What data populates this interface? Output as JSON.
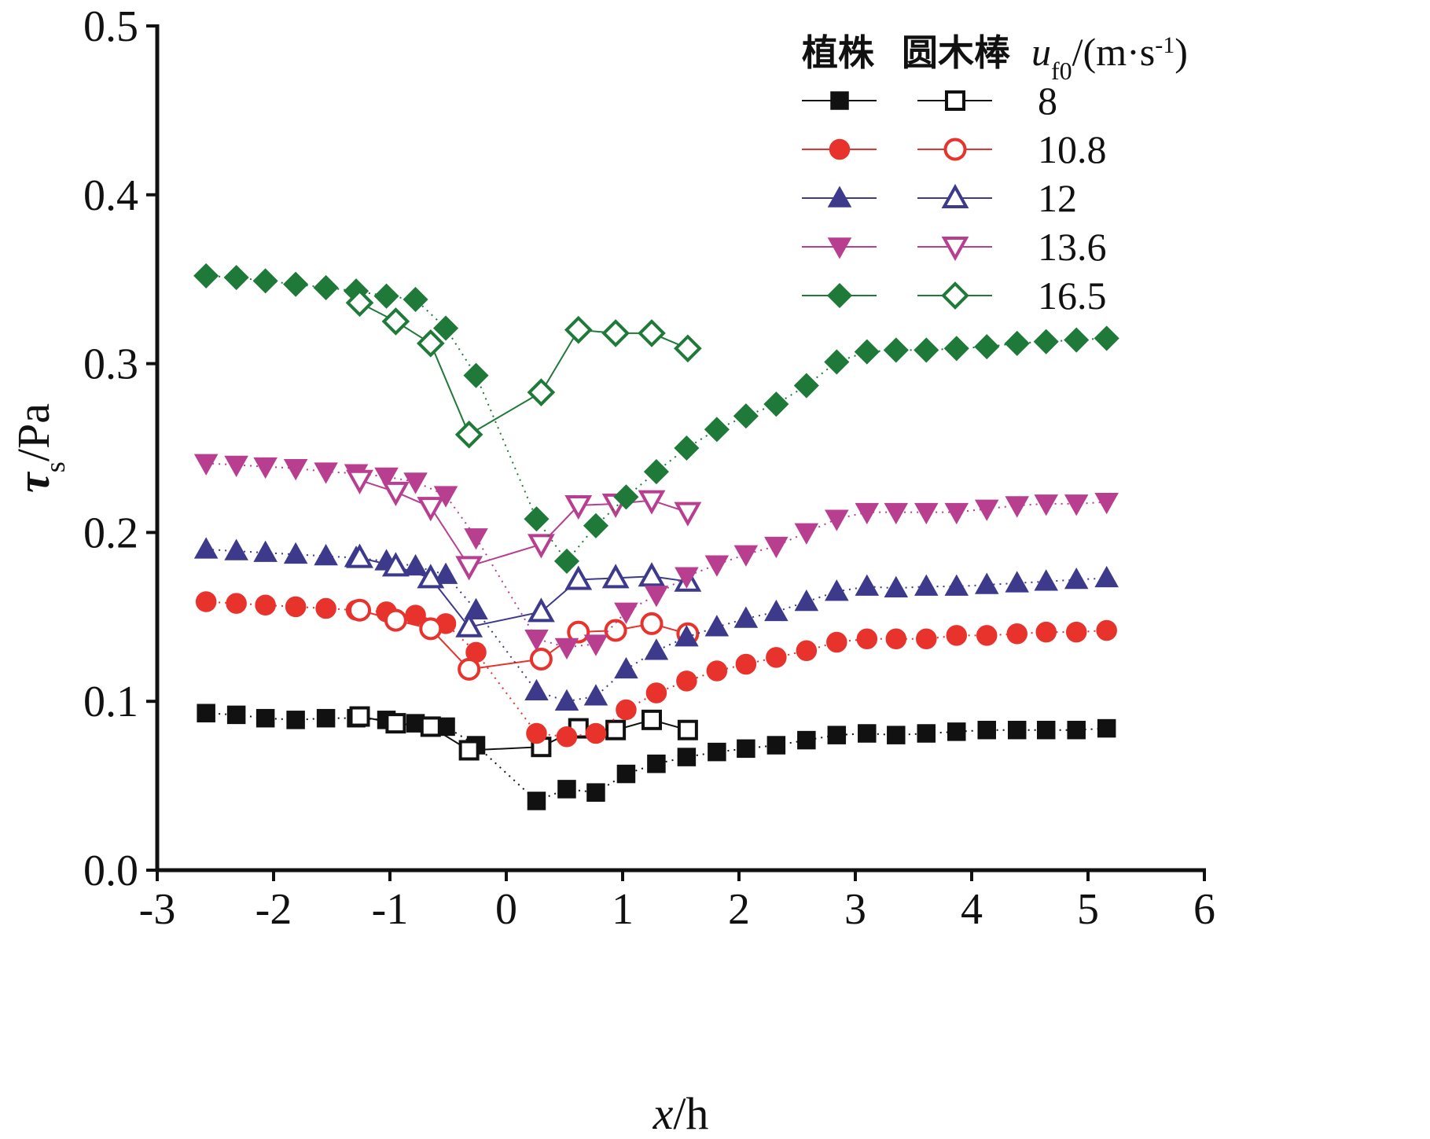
{
  "chart_data": {
    "type": "scatter",
    "xlabel": "x/h",
    "ylabel": "τs/Pa",
    "xlim": [
      -3,
      6
    ],
    "ylim": [
      0,
      0.5
    ],
    "x_ticks": [
      "-3",
      "-2",
      "-1",
      "0",
      "1",
      "2",
      "3",
      "4",
      "5",
      "6"
    ],
    "y_ticks": [
      "0.0",
      "0.1",
      "0.2",
      "0.3",
      "0.4",
      "0.5"
    ],
    "legend": {
      "placement": "top-right",
      "col1": "植株",
      "col2": "圆木棒",
      "col3": "uf0/(m·s-1)",
      "col3_var": "u",
      "col3_sub": "f0",
      "col3_mid": "/(m·s",
      "col3_sup": "-1",
      "col3_end": ")"
    },
    "series": [
      {
        "name": "8",
        "group": "植株",
        "marker": "square",
        "filled": true,
        "color": "#111111",
        "x": [
          -2.58,
          -2.32,
          -2.07,
          -1.81,
          -1.55,
          -1.29,
          -1.03,
          -0.78,
          -0.52,
          -0.26,
          0.26,
          0.52,
          0.77,
          1.03,
          1.29,
          1.55,
          1.81,
          2.06,
          2.32,
          2.58,
          2.84,
          3.1,
          3.35,
          3.61,
          3.87,
          4.13,
          4.39,
          4.64,
          4.9,
          5.16
        ],
        "y": [
          0.093,
          0.092,
          0.09,
          0.089,
          0.09,
          0.09,
          0.089,
          0.087,
          0.085,
          0.074,
          0.041,
          0.048,
          0.046,
          0.057,
          0.063,
          0.067,
          0.07,
          0.072,
          0.074,
          0.077,
          0.08,
          0.081,
          0.08,
          0.081,
          0.082,
          0.083,
          0.083,
          0.083,
          0.083,
          0.084
        ]
      },
      {
        "name": "8",
        "group": "圆木棒",
        "marker": "square",
        "filled": false,
        "color": "#111111",
        "x": [
          -1.26,
          -0.95,
          -0.65,
          -0.32,
          0.3,
          0.62,
          0.94,
          1.25,
          1.56
        ],
        "y": [
          0.091,
          0.087,
          0.085,
          0.071,
          0.073,
          0.084,
          0.083,
          0.089,
          0.083
        ]
      },
      {
        "name": "10.8",
        "group": "植株",
        "marker": "circle",
        "filled": true,
        "color": "#e8322c",
        "x": [
          -2.58,
          -2.32,
          -2.07,
          -1.81,
          -1.55,
          -1.29,
          -1.03,
          -0.78,
          -0.52,
          -0.26,
          0.26,
          0.52,
          0.77,
          1.03,
          1.29,
          1.55,
          1.81,
          2.06,
          2.32,
          2.58,
          2.84,
          3.1,
          3.35,
          3.61,
          3.87,
          4.13,
          4.39,
          4.64,
          4.9,
          5.16
        ],
        "y": [
          0.159,
          0.158,
          0.157,
          0.156,
          0.155,
          0.154,
          0.153,
          0.151,
          0.146,
          0.129,
          0.081,
          0.079,
          0.081,
          0.095,
          0.105,
          0.112,
          0.118,
          0.122,
          0.126,
          0.13,
          0.135,
          0.137,
          0.137,
          0.137,
          0.139,
          0.139,
          0.14,
          0.141,
          0.141,
          0.142
        ]
      },
      {
        "name": "10.8",
        "group": "圆木棒",
        "marker": "circle",
        "filled": false,
        "color": "#e8322c",
        "x": [
          -1.26,
          -0.95,
          -0.65,
          -0.32,
          0.3,
          0.62,
          0.94,
          1.25,
          1.56
        ],
        "y": [
          0.154,
          0.148,
          0.143,
          0.119,
          0.125,
          0.141,
          0.142,
          0.146,
          0.14
        ]
      },
      {
        "name": "12",
        "group": "植株",
        "marker": "triangle-up",
        "filled": true,
        "color": "#3d3a8c",
        "x": [
          -2.58,
          -2.32,
          -2.07,
          -1.81,
          -1.55,
          -1.29,
          -1.03,
          -0.78,
          -0.52,
          -0.26,
          0.26,
          0.52,
          0.77,
          1.03,
          1.29,
          1.55,
          1.81,
          2.06,
          2.32,
          2.58,
          2.84,
          3.1,
          3.35,
          3.61,
          3.87,
          4.13,
          4.39,
          4.64,
          4.9,
          5.16
        ],
        "y": [
          0.19,
          0.189,
          0.188,
          0.187,
          0.186,
          0.185,
          0.183,
          0.18,
          0.175,
          0.154,
          0.106,
          0.1,
          0.103,
          0.119,
          0.13,
          0.138,
          0.144,
          0.149,
          0.153,
          0.159,
          0.165,
          0.168,
          0.167,
          0.168,
          0.168,
          0.169,
          0.17,
          0.171,
          0.172,
          0.173
        ]
      },
      {
        "name": "12",
        "group": "圆木棒",
        "marker": "triangle-up",
        "filled": false,
        "color": "#3d3a8c",
        "x": [
          -1.26,
          -0.95,
          -0.65,
          -0.32,
          0.3,
          0.62,
          0.94,
          1.25,
          1.56
        ],
        "y": [
          0.185,
          0.18,
          0.173,
          0.144,
          0.153,
          0.172,
          0.173,
          0.174,
          0.171
        ]
      },
      {
        "name": "13.6",
        "group": "植株",
        "marker": "triangle-down",
        "filled": true,
        "color": "#b83f8f",
        "x": [
          -2.58,
          -2.32,
          -2.07,
          -1.81,
          -1.55,
          -1.29,
          -1.03,
          -0.78,
          -0.52,
          -0.26,
          0.26,
          0.52,
          0.77,
          1.03,
          1.29,
          1.55,
          1.81,
          2.06,
          2.32,
          2.58,
          2.84,
          3.1,
          3.35,
          3.61,
          3.87,
          4.13,
          4.39,
          4.64,
          4.9,
          5.16
        ],
        "y": [
          0.241,
          0.24,
          0.239,
          0.238,
          0.236,
          0.235,
          0.233,
          0.23,
          0.222,
          0.197,
          0.137,
          0.132,
          0.134,
          0.153,
          0.163,
          0.174,
          0.181,
          0.187,
          0.192,
          0.2,
          0.208,
          0.212,
          0.212,
          0.212,
          0.212,
          0.214,
          0.216,
          0.217,
          0.217,
          0.218
        ]
      },
      {
        "name": "13.6",
        "group": "圆木棒",
        "marker": "triangle-down",
        "filled": false,
        "color": "#b83f8f",
        "x": [
          -1.26,
          -0.95,
          -0.65,
          -0.32,
          0.3,
          0.62,
          0.94,
          1.25,
          1.56
        ],
        "y": [
          0.231,
          0.224,
          0.215,
          0.18,
          0.193,
          0.216,
          0.217,
          0.219,
          0.212
        ]
      },
      {
        "name": "16.5",
        "group": "植株",
        "marker": "diamond",
        "filled": true,
        "color": "#1f7a3a",
        "x": [
          -2.58,
          -2.32,
          -2.07,
          -1.81,
          -1.55,
          -1.29,
          -1.03,
          -0.78,
          -0.52,
          -0.26,
          0.26,
          0.52,
          0.77,
          1.03,
          1.29,
          1.55,
          1.81,
          2.06,
          2.32,
          2.58,
          2.84,
          3.1,
          3.35,
          3.61,
          3.87,
          4.13,
          4.39,
          4.64,
          4.9,
          5.16
        ],
        "y": [
          0.352,
          0.351,
          0.349,
          0.347,
          0.345,
          0.343,
          0.34,
          0.338,
          0.321,
          0.293,
          0.208,
          0.183,
          0.204,
          0.221,
          0.236,
          0.25,
          0.261,
          0.269,
          0.276,
          0.287,
          0.301,
          0.307,
          0.308,
          0.308,
          0.309,
          0.31,
          0.312,
          0.313,
          0.314,
          0.315
        ]
      },
      {
        "name": "16.5",
        "group": "圆木棒",
        "marker": "diamond",
        "filled": false,
        "color": "#1f7a3a",
        "x": [
          -1.26,
          -0.95,
          -0.65,
          -0.32,
          0.3,
          0.62,
          0.94,
          1.25,
          1.56
        ],
        "y": [
          0.336,
          0.325,
          0.312,
          0.258,
          0.283,
          0.32,
          0.318,
          0.318,
          0.309
        ]
      }
    ]
  }
}
